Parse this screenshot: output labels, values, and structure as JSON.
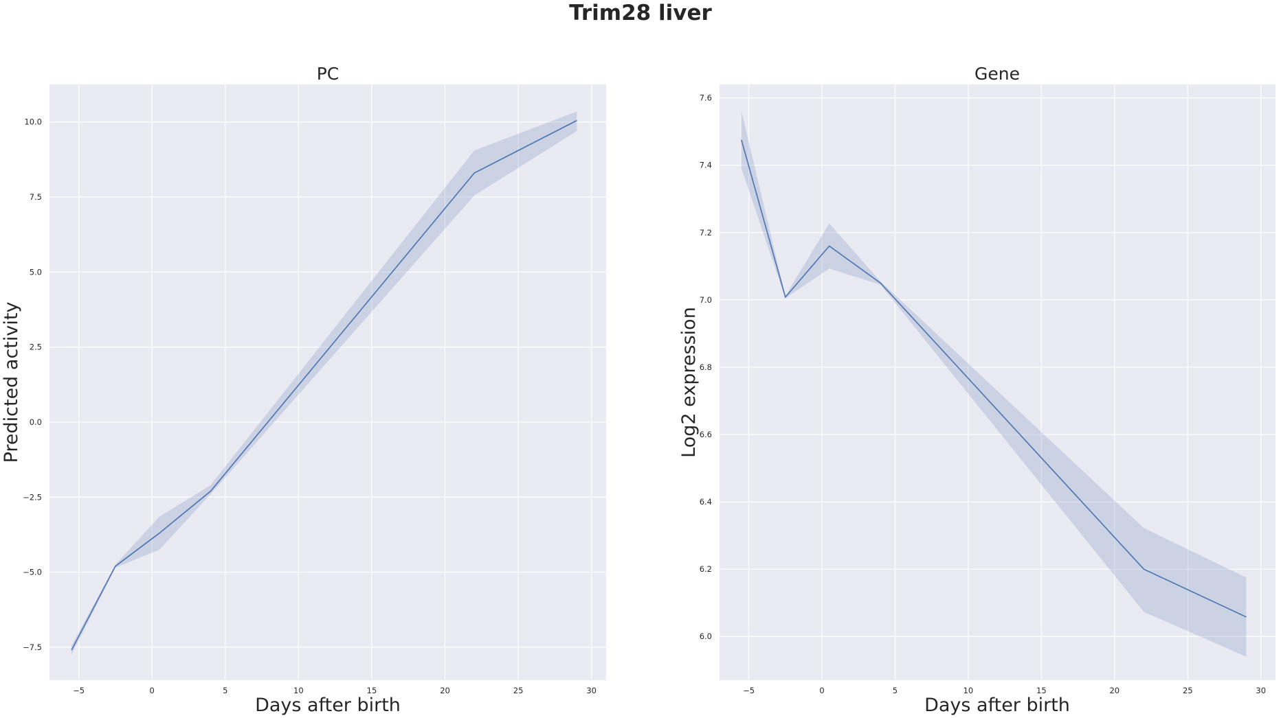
{
  "figure": {
    "title": "Trim28 liver"
  },
  "colors": {
    "line": "#4c72b0",
    "band": "#4c72b0",
    "background": "#eaeaf2",
    "grid": "#ffffff"
  },
  "chart_data": [
    {
      "type": "line",
      "title": "PC",
      "xlabel": "Days after birth",
      "ylabel": "Predicted activity",
      "xlim": [
        -7,
        31
      ],
      "ylim": [
        -8.6,
        11.25
      ],
      "xticks": [
        -5,
        0,
        5,
        10,
        15,
        20,
        25,
        30
      ],
      "xtick_labels": [
        "−5",
        "0",
        "5",
        "10",
        "15",
        "20",
        "25",
        "30"
      ],
      "yticks": [
        -7.5,
        -5.0,
        -2.5,
        0.0,
        2.5,
        5.0,
        7.5,
        10.0
      ],
      "ytick_labels": [
        "−7.5",
        "−5.0",
        "−2.5",
        "0.0",
        "2.5",
        "5.0",
        "7.5",
        "10.0"
      ],
      "grid": true,
      "series": [
        {
          "x": [
            -5.5,
            -2.5,
            0.5,
            4.0,
            22.0,
            29.0
          ],
          "y": [
            -7.6,
            -4.8,
            -3.7,
            -2.3,
            8.3,
            10.05
          ],
          "lower": [
            -7.75,
            -4.85,
            -4.25,
            -2.4,
            7.55,
            9.7
          ],
          "upper": [
            -7.45,
            -4.75,
            -3.15,
            -2.1,
            9.05,
            10.35
          ]
        }
      ]
    },
    {
      "type": "line",
      "title": "Gene",
      "xlabel": "Days after birth",
      "ylabel": "Log2 expression",
      "xlim": [
        -7,
        31
      ],
      "ylim": [
        5.87,
        7.64
      ],
      "xticks": [
        -5,
        0,
        5,
        10,
        15,
        20,
        25,
        30
      ],
      "xtick_labels": [
        "−5",
        "0",
        "5",
        "10",
        "15",
        "20",
        "25",
        "30"
      ],
      "yticks": [
        6.0,
        6.2,
        6.4,
        6.6,
        6.8,
        7.0,
        7.2,
        7.4,
        7.6
      ],
      "ytick_labels": [
        "6.0",
        "6.2",
        "6.4",
        "6.6",
        "6.8",
        "7.0",
        "7.2",
        "7.4",
        "7.6"
      ],
      "grid": true,
      "series": [
        {
          "x": [
            -5.5,
            -2.5,
            0.5,
            4.0,
            22.0,
            29.0
          ],
          "y": [
            7.475,
            7.008,
            7.16,
            7.05,
            6.2,
            6.058
          ],
          "lower": [
            7.39,
            7.005,
            7.093,
            7.045,
            6.073,
            5.94
          ],
          "upper": [
            7.56,
            7.012,
            7.227,
            7.055,
            6.322,
            6.175
          ]
        }
      ]
    }
  ]
}
